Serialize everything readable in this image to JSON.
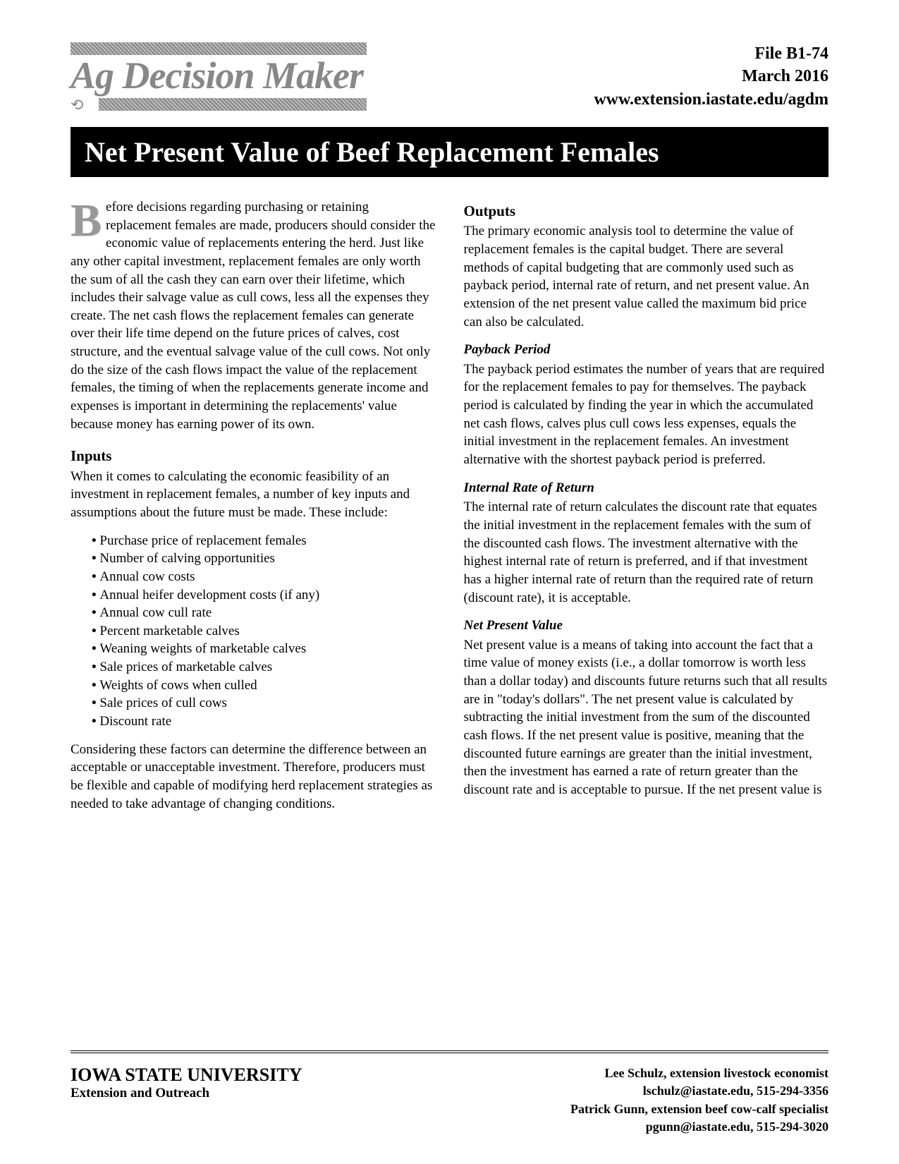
{
  "header": {
    "logo_text": "Ag Decision Maker",
    "file_id": "File  B1-74",
    "date": "March 2016",
    "url": "www.extension.iastate.edu/agdm"
  },
  "title": "Net Present Value of Beef Replacement Females",
  "left_column": {
    "dropcap": "B",
    "intro": "efore decisions regarding purchasing or retaining replacement females are made, producers should consider the economic value of replacements entering the herd. Just like any other capital investment, replacement females are only worth the sum of all the cash they can earn over their lifetime, which includes their salvage value as cull cows, less all the expenses they create. The net cash flows the replacement females can generate over their life time depend on the future prices of calves, cost structure, and the eventual salvage value of the cull cows. Not only do the size of the cash flows impact the value of the replacement females, the timing of when the replacements generate income and expenses is important in determining the replacements' value because money has earning power of its own.",
    "inputs_head": "Inputs",
    "inputs_intro": "When it comes to calculating the economic feasibility of an investment in replacement females, a number of key inputs and assumptions about the future must be made. These include:",
    "inputs_list": [
      "Purchase price of replacement females",
      "Number of calving opportunities",
      "Annual cow costs",
      "Annual heifer development costs (if any)",
      "Annual cow cull rate",
      "Percent marketable calves",
      "Weaning weights of marketable calves",
      "Sale prices of marketable calves",
      "Weights of cows when culled",
      "Sale prices of cull cows",
      "Discount rate"
    ],
    "inputs_closing": "Considering these factors can determine the difference between an acceptable or unacceptable investment. Therefore, producers must be flexible and capable of modifying herd replacement strategies as needed to take advantage of changing conditions."
  },
  "right_column": {
    "outputs_head": "Outputs",
    "outputs_intro": "The primary economic analysis tool to determine the value of replacement females is the capital budget. There are several methods of capital budgeting that are commonly used such as payback period, internal rate of return, and net present value. An extension of the net present value called the maximum bid price can also be calculated.",
    "payback_head": "Payback Period",
    "payback_body": "The payback period estimates the number of years that are required for the replacement females to pay for themselves. The payback period is calculated by finding the year in which the accumulated net cash flows, calves plus cull cows less expenses, equals the initial investment in the replacement females. An investment alternative with the shortest payback period is preferred.",
    "irr_head": "Internal Rate of Return",
    "irr_body": "The internal rate of return calculates the discount rate that equates the initial investment in the replacement females with the sum of the discounted cash flows. The investment alternative with the highest internal rate of return is preferred, and if that investment has a higher internal rate of return than the required rate of return (discount rate), it is acceptable.",
    "npv_head": "Net Present Value",
    "npv_body": "Net present value is a means of taking into account the fact that a time value of money exists (i.e., a dollar tomorrow is worth less than a dollar today) and discounts future returns such that all results are in \"today's dollars\". The net present value is calculated by subtracting the initial investment from the sum of the discounted cash flows. If the net present value is positive, meaning that the discounted future earnings are greater than the initial investment, then the investment has earned a rate of return greater than the discount rate and is acceptable to pursue. If the net present value is"
  },
  "footer": {
    "org_line1": "IOWA STATE UNIVERSITY",
    "org_line2": "Extension and Outreach",
    "author1_line": "Lee Schulz, extension livestock economist",
    "author1_contact": "lschulz@iastate.edu, 515-294-3356",
    "author2_line": "Patrick Gunn, extension beef cow-calf specialist",
    "author2_contact": "pgunn@iastate.edu, 515-294-3020"
  }
}
